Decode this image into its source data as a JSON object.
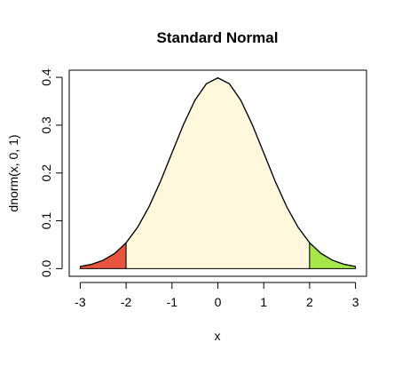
{
  "chart_data": {
    "type": "line",
    "title": "Standard Normal",
    "x_label": "x",
    "y_label": "dnorm(x, 0, 1)",
    "x": [
      -3,
      -2.75,
      -2.5,
      -2.25,
      -2,
      -1.75,
      -1.5,
      -1.25,
      -1,
      -0.75,
      -0.5,
      -0.25,
      0,
      0.25,
      0.5,
      0.75,
      1,
      1.25,
      1.5,
      1.75,
      2,
      2.25,
      2.5,
      2.75,
      3
    ],
    "series": [
      {
        "color": "#000000",
        "values": [
          0.0044,
          0.0091,
          0.0175,
          0.0317,
          0.054,
          0.0863,
          0.1295,
          0.1826,
          0.242,
          0.3011,
          0.3521,
          0.3867,
          0.3989,
          0.3867,
          0.3521,
          0.3011,
          0.242,
          0.1826,
          0.1295,
          0.0863,
          0.054,
          0.0317,
          0.0175,
          0.0091,
          0.0044
        ]
      }
    ],
    "regions": [
      {
        "from": -3,
        "to": -2,
        "color": "#e8553f"
      },
      {
        "from": -2,
        "to": 2,
        "color": "#fff8dc"
      },
      {
        "from": 2,
        "to": 3,
        "color": "#a6e84a"
      }
    ],
    "xlim": [
      -3.24,
      3.24
    ],
    "ylim": [
      -0.016,
      0.415
    ],
    "xticks": [
      -3,
      -2,
      -1,
      0,
      1,
      2,
      3
    ],
    "yticks": [
      {
        "value": 0,
        "label": "0.0"
      },
      0.1,
      0.2,
      0.3,
      0.4
    ]
  }
}
